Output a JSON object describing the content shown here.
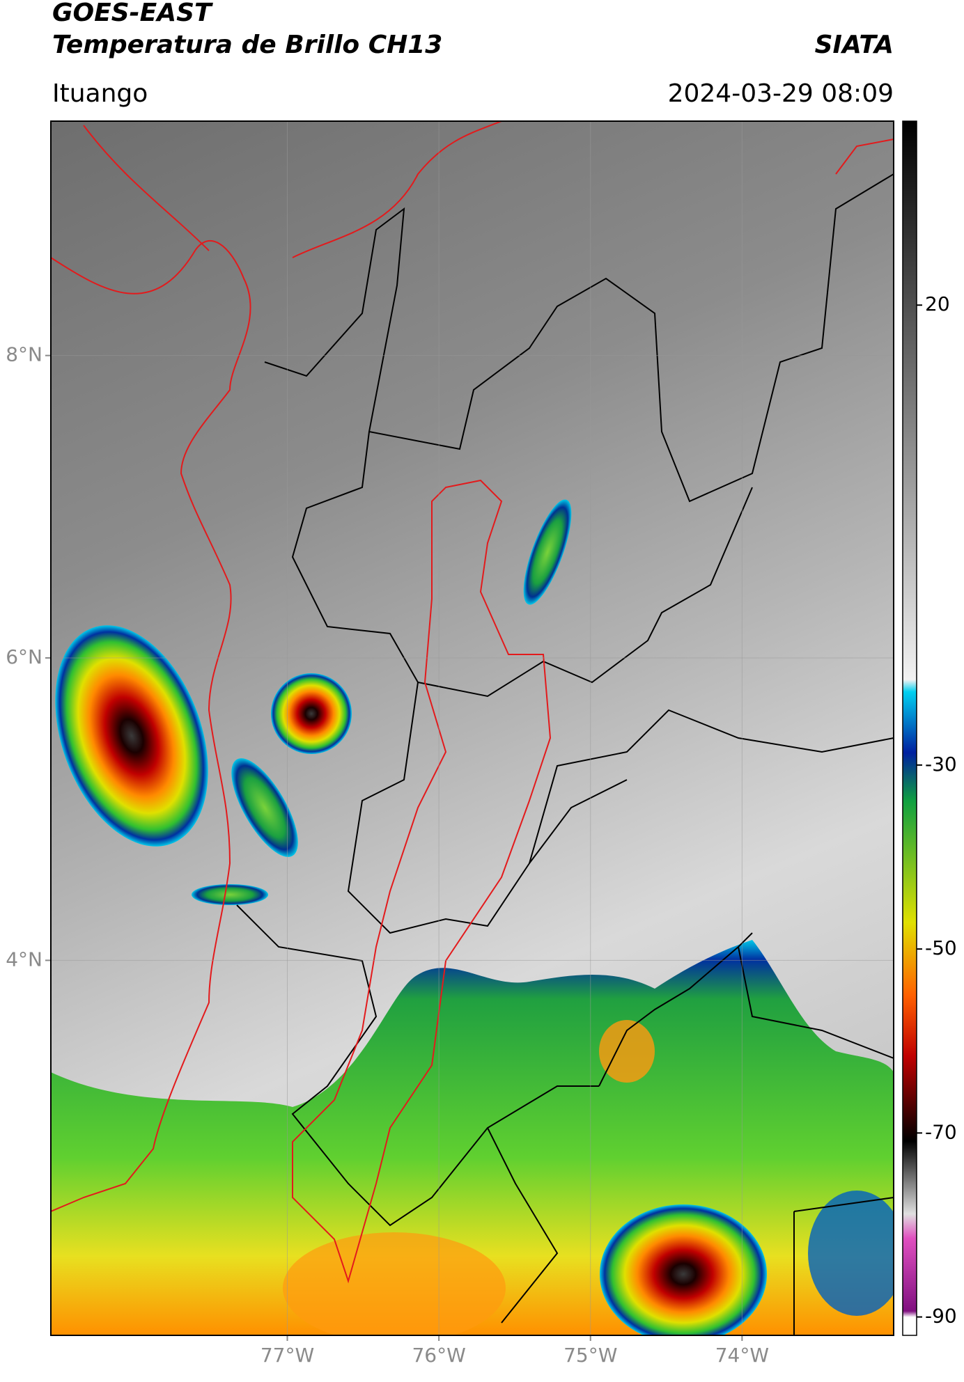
{
  "header": {
    "title_line1": "GOES-EAST",
    "title_line2": "Temperatura de Brillo CH13",
    "source": "SIATA",
    "location": "Ituango",
    "datetime": "2024-03-29 08:09"
  },
  "map": {
    "xlim": [
      -78.56,
      -73.0
    ],
    "ylim": [
      1.52,
      9.55
    ],
    "xticks": [
      {
        "value": -77,
        "label": "77°W"
      },
      {
        "value": -76,
        "label": "76°W"
      },
      {
        "value": -75,
        "label": "75°W"
      },
      {
        "value": -74,
        "label": "74°W"
      }
    ],
    "yticks": [
      {
        "value": 8,
        "label": "8°N"
      },
      {
        "value": 6,
        "label": "6°N"
      },
      {
        "value": 4,
        "label": "4°N"
      }
    ],
    "grid": true
  },
  "colorbar": {
    "lim": [
      -92,
      40
    ],
    "ticks": [
      20,
      -30,
      -50,
      -70,
      -90
    ]
  }
}
